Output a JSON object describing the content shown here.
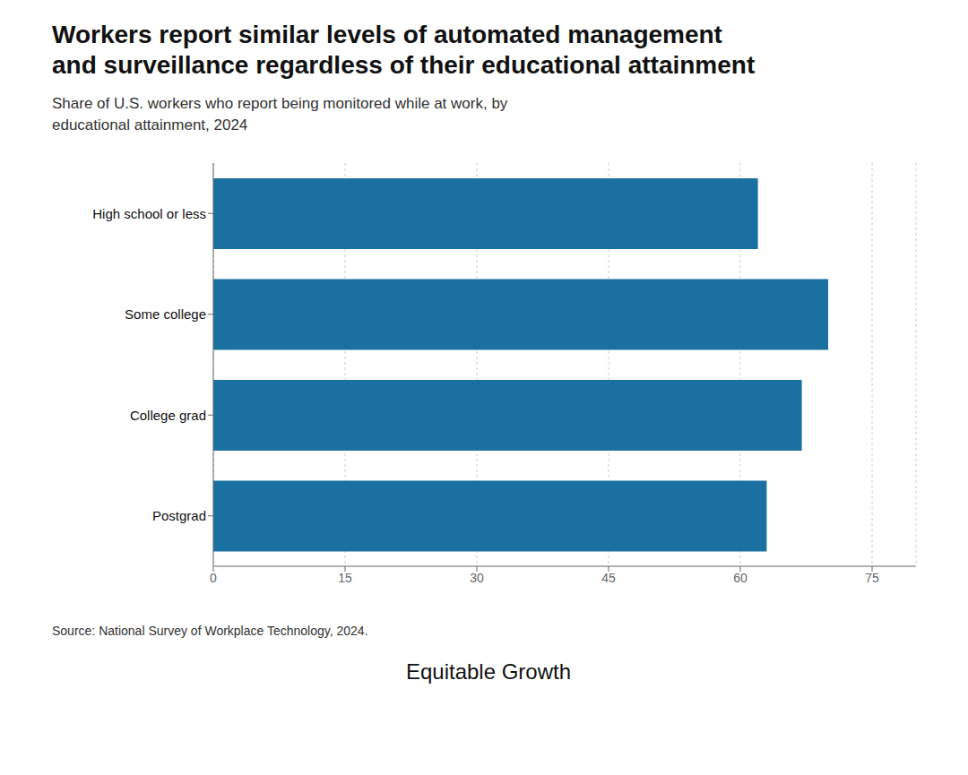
{
  "chart_data": {
    "type": "bar",
    "orientation": "horizontal",
    "title": [
      "Workers report similar levels of automated management",
      "and surveillance regardless of their educational attainment"
    ],
    "subtitle": [
      "Share of U.S. workers who report being monitored while at work, by",
      "educational attainment, 2024"
    ],
    "categories": [
      "High school or less",
      "Some college",
      "College grad",
      "Postgrad"
    ],
    "values": [
      62,
      70,
      67,
      63
    ],
    "color": "#1a70a0",
    "xlim": [
      0,
      80
    ],
    "xticks": [
      0,
      15,
      30,
      45,
      60,
      75
    ],
    "grid": true,
    "source": "Source: National Survey of Workplace Technology, 2024.",
    "annotations": [
      "Equitable Growth"
    ]
  }
}
